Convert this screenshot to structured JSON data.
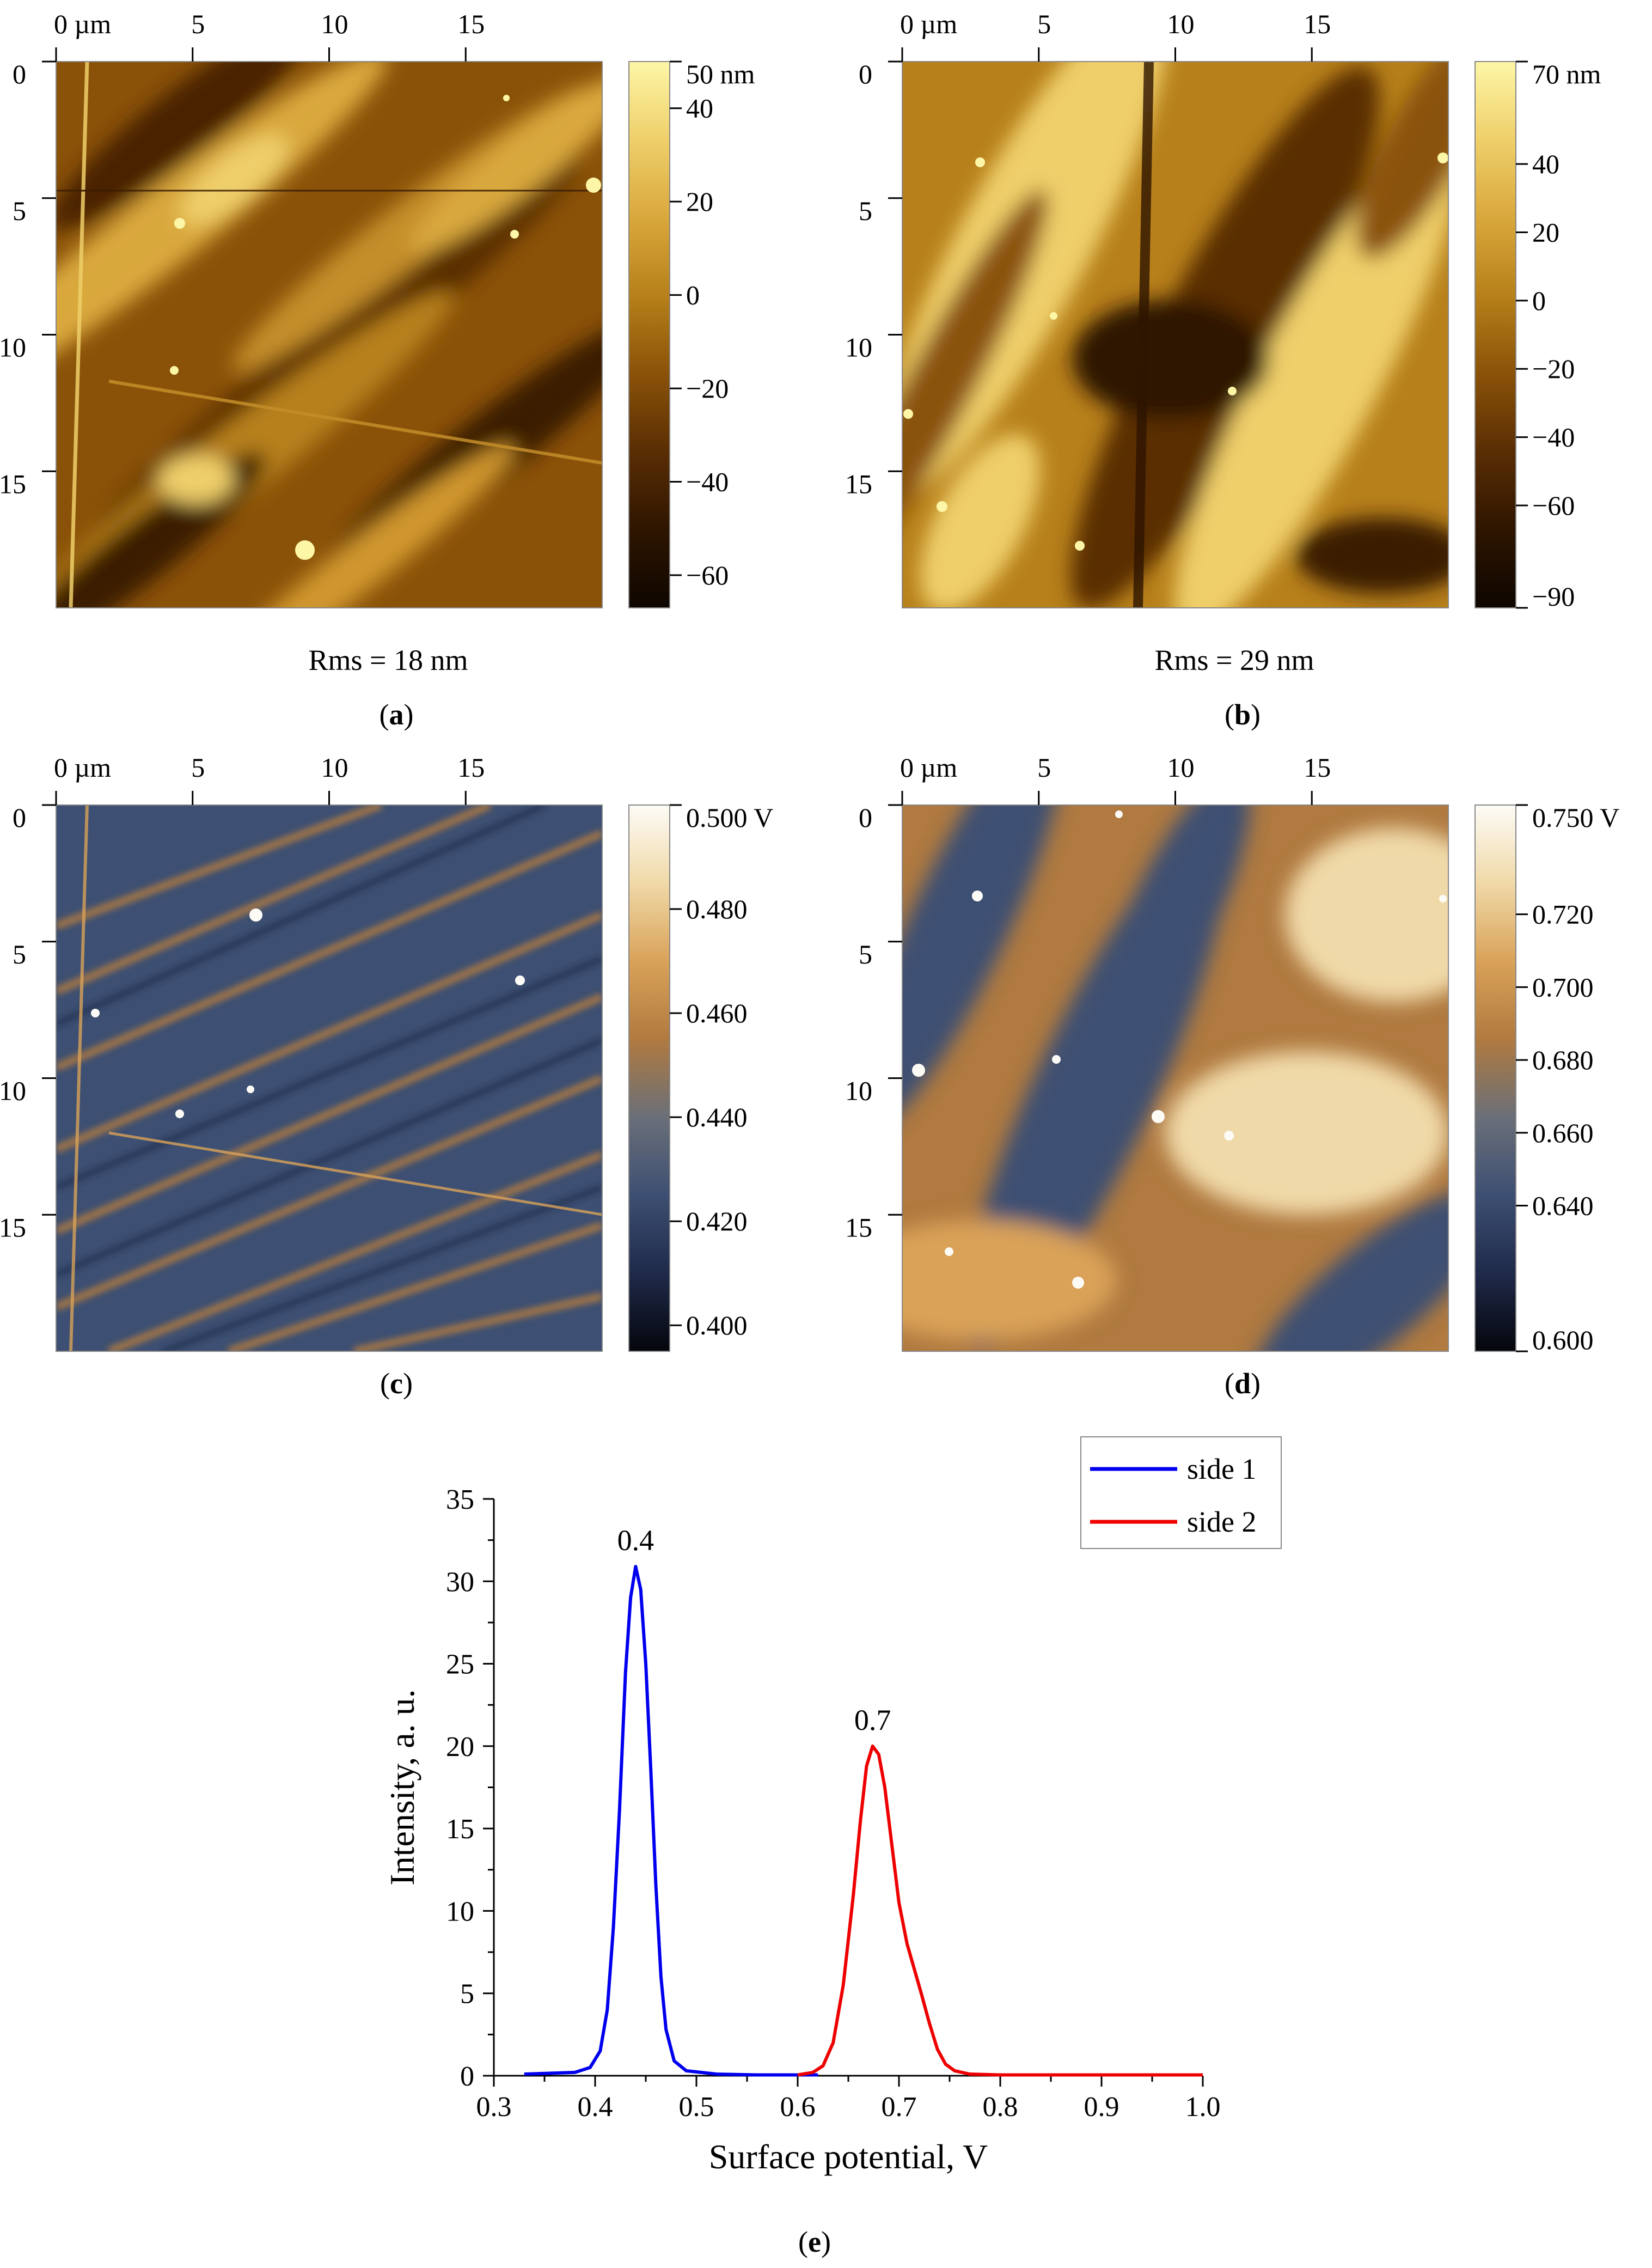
{
  "figure": {
    "panels": [
      {
        "id": "a",
        "label": "a",
        "kind": "height",
        "rms": "Rms = 18 nm",
        "x_ticks": [
          "0 µm",
          "5",
          "10",
          "15"
        ],
        "y_ticks": [
          "0",
          "5",
          "10",
          "15"
        ],
        "scale_labels": [
          "50 nm",
          "40",
          "20",
          "0",
          "−20",
          "−40",
          "−60"
        ],
        "scale_values": [
          50,
          40,
          20,
          0,
          -20,
          -40,
          -60
        ],
        "scale_range": [
          -67,
          50
        ],
        "colors": [
          "#0e0600",
          "#2e1500",
          "#5a2e04",
          "#8a5208",
          "#b7801a",
          "#d9a83c",
          "#efcf6a",
          "#fdf6a6"
        ]
      },
      {
        "id": "b",
        "label": "b",
        "kind": "height",
        "rms": "Rms = 29 nm",
        "x_ticks": [
          "0 µm",
          "5",
          "10",
          "15"
        ],
        "y_ticks": [
          "0",
          "5",
          "10",
          "15"
        ],
        "scale_labels": [
          "70 nm",
          "40",
          "20",
          "0",
          "−20",
          "−40",
          "−60",
          "−90"
        ],
        "scale_values": [
          70,
          40,
          20,
          0,
          -20,
          -40,
          -60,
          -90
        ],
        "scale_range": [
          -90,
          70
        ],
        "colors": [
          "#0e0600",
          "#2e1500",
          "#5a2e04",
          "#8a5208",
          "#b7801a",
          "#d9a83c",
          "#efcf6a",
          "#fdf6a6"
        ]
      },
      {
        "id": "c",
        "label": "c",
        "kind": "potential",
        "x_ticks": [
          "0 µm",
          "5",
          "10",
          "15"
        ],
        "y_ticks": [
          "0",
          "5",
          "10",
          "15"
        ],
        "scale_labels": [
          "0.500 V",
          "0.480",
          "0.460",
          "0.440",
          "0.420",
          "0.400"
        ],
        "scale_values": [
          0.5,
          0.48,
          0.46,
          0.44,
          0.42,
          0.4
        ],
        "scale_range": [
          0.395,
          0.5
        ],
        "colors": [
          "#05060c",
          "#1f2a4a",
          "#3d4f72",
          "#6a6f78",
          "#b07a40",
          "#d9a259",
          "#f0d9a8",
          "#fdfbf6"
        ]
      },
      {
        "id": "d",
        "label": "d",
        "kind": "potential",
        "x_ticks": [
          "0 µm",
          "5",
          "10",
          "15"
        ],
        "y_ticks": [
          "0",
          "5",
          "10",
          "15"
        ],
        "scale_labels": [
          "0.750 V",
          "0.720",
          "0.700",
          "0.680",
          "0.660",
          "0.640",
          "0.600"
        ],
        "scale_values": [
          0.75,
          0.72,
          0.7,
          0.68,
          0.66,
          0.64,
          0.6
        ],
        "scale_range": [
          0.6,
          0.75
        ],
        "colors": [
          "#05060c",
          "#1f2a4a",
          "#3d4f72",
          "#6a6f78",
          "#b07a40",
          "#d9a259",
          "#f0d9a8",
          "#fdfbf6"
        ]
      }
    ]
  },
  "chart_data": {
    "type": "line",
    "label": "e",
    "title": "",
    "xlabel": "Surface potential, V",
    "ylabel": "Intensity, a. u.",
    "xlim": [
      0.3,
      1.0
    ],
    "ylim": [
      0,
      35
    ],
    "x_ticks": [
      0.3,
      0.4,
      0.5,
      0.6,
      0.7,
      0.8,
      0.9,
      1.0
    ],
    "x_tick_labels": [
      "0.3",
      "0.4",
      "0.5",
      "0.6",
      "0.7",
      "0.8",
      "0.9",
      "1.0"
    ],
    "y_ticks": [
      0,
      5,
      10,
      15,
      20,
      25,
      30,
      35
    ],
    "y_tick_labels": [
      "0",
      "5",
      "10",
      "15",
      "20",
      "25",
      "30",
      "35"
    ],
    "legend": "top-right",
    "series": [
      {
        "name": "side 1",
        "color": "#0000ee",
        "x": [
          0.33,
          0.38,
          0.395,
          0.405,
          0.412,
          0.418,
          0.424,
          0.43,
          0.435,
          0.44,
          0.445,
          0.45,
          0.455,
          0.46,
          0.465,
          0.47,
          0.478,
          0.49,
          0.52,
          0.56,
          0.6,
          0.62
        ],
        "values": [
          0.1,
          0.2,
          0.5,
          1.5,
          4.0,
          9.0,
          16.0,
          24.5,
          29.0,
          30.9,
          29.5,
          25.0,
          18.5,
          11.5,
          6.0,
          2.8,
          0.9,
          0.3,
          0.1,
          0.05,
          0.05,
          0.05
        ]
      },
      {
        "name": "side 2",
        "color": "#ee0000",
        "x": [
          0.6,
          0.615,
          0.625,
          0.635,
          0.645,
          0.655,
          0.662,
          0.668,
          0.674,
          0.68,
          0.686,
          0.692,
          0.7,
          0.708,
          0.715,
          0.722,
          0.73,
          0.738,
          0.746,
          0.755,
          0.77,
          0.8,
          0.9,
          1.0
        ],
        "values": [
          0.05,
          0.2,
          0.6,
          2.0,
          5.5,
          11.0,
          15.5,
          18.8,
          20.0,
          19.5,
          17.5,
          14.5,
          10.5,
          8.0,
          6.5,
          5.0,
          3.2,
          1.6,
          0.7,
          0.3,
          0.1,
          0.05,
          0.05,
          0.05
        ]
      }
    ],
    "annotations": [
      {
        "text": "0.4",
        "x": 0.44,
        "y": 30.9
      },
      {
        "text": "0.7",
        "x": 0.674,
        "y": 20.0
      }
    ]
  }
}
